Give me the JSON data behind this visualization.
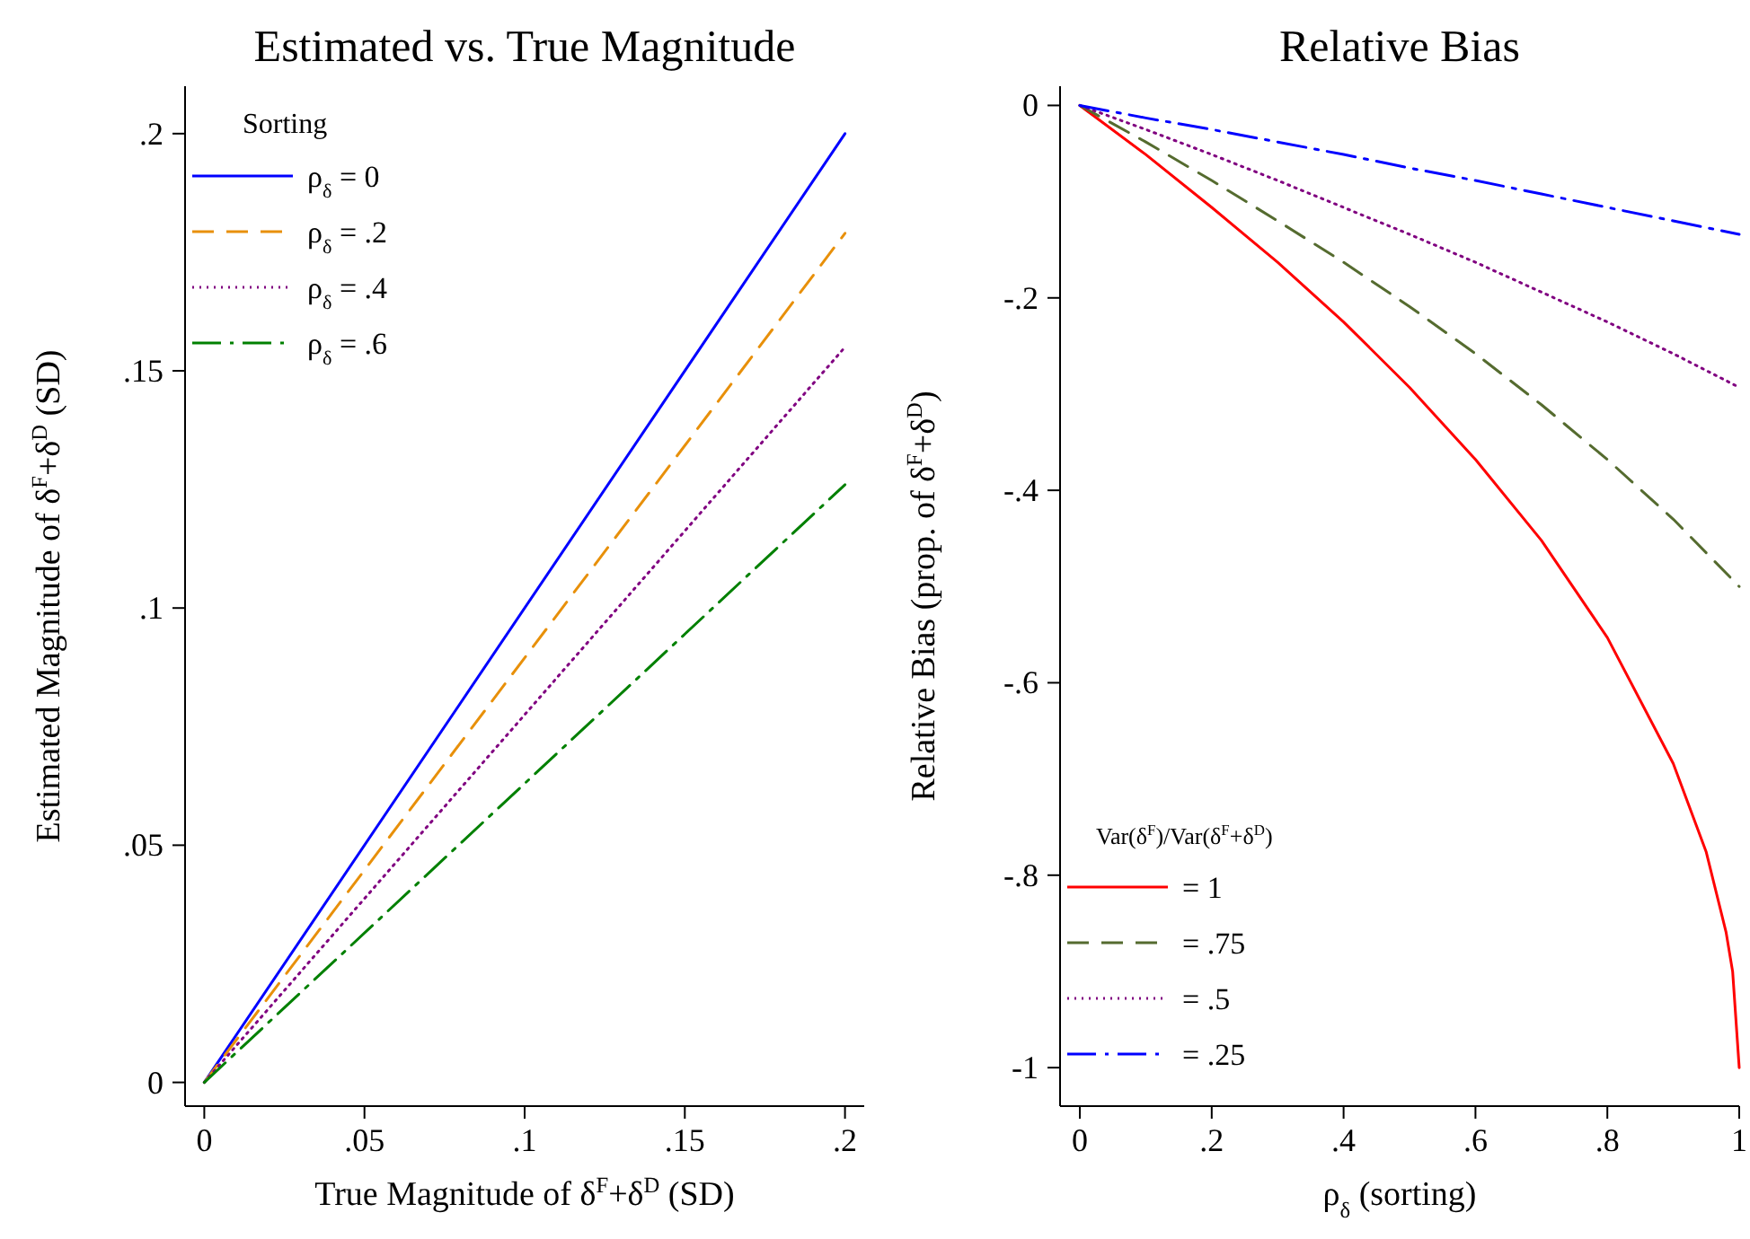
{
  "chart_data": [
    {
      "type": "line",
      "title": "Estimated vs. True Magnitude",
      "xlabel": "True Magnitude of δ$^{F}$+δ$^{D}$ (SD)",
      "ylabel": "Estimated Magnitude of δ$^{F}$+δ$^{D}$ (SD)",
      "legend_title": "Sorting",
      "legend": "top left",
      "x": [
        0,
        0.2
      ],
      "xlim": [
        -0.006,
        0.206
      ],
      "ylim": [
        -0.005,
        0.21
      ],
      "xticks": [
        {
          "value": 0,
          "label": "0"
        },
        {
          "value": 0.05,
          "label": ".05"
        },
        {
          "value": 0.1,
          "label": ".1"
        },
        {
          "value": 0.15,
          "label": ".15"
        },
        {
          "value": 0.2,
          "label": ".2"
        }
      ],
      "yticks": [
        {
          "value": 0,
          "label": "0"
        },
        {
          "value": 0.05,
          "label": ".05"
        },
        {
          "value": 0.1,
          "label": ".1"
        },
        {
          "value": 0.15,
          "label": ".15"
        },
        {
          "value": 0.2,
          "label": ".2"
        }
      ],
      "series": [
        {
          "name": "ρ$_{δ}$ = 0",
          "color": "#0000ff",
          "line_style": "solid",
          "values": [
            0,
            0.2
          ]
        },
        {
          "name": "ρ$_{δ}$ = .2",
          "color": "#e8900a",
          "line_style": "dashed",
          "values": [
            0,
            0.179
          ]
        },
        {
          "name": "ρ$_{δ}$ = .4",
          "color": "#800080",
          "line_style": "dotted",
          "values": [
            0,
            0.155
          ]
        },
        {
          "name": "ρ$_{δ}$ = .6",
          "color": "#008000",
          "line_style": "dashdot",
          "values": [
            0,
            0.126
          ]
        }
      ]
    },
    {
      "type": "line",
      "title": "Relative Bias",
      "xlabel": "ρ$_{δ}$ (sorting)",
      "ylabel": "Relative Bias (prop. of δ$^{F}$+δ$^{D}$)",
      "legend_title": "Var(δ$^{F}$)/Var(δ$^{F}$+δ$^{D}$)",
      "legend": "bottom left",
      "xlim": [
        -0.03,
        1.0
      ],
      "ylim": [
        -1.04,
        0.02
      ],
      "xticks": [
        {
          "value": 0,
          "label": "0"
        },
        {
          "value": 0.2,
          "label": ".2"
        },
        {
          "value": 0.4,
          "label": ".4"
        },
        {
          "value": 0.6,
          "label": ".6"
        },
        {
          "value": 0.8,
          "label": ".8"
        },
        {
          "value": 1,
          "label": "1"
        }
      ],
      "yticks": [
        {
          "value": 0,
          "label": "0"
        },
        {
          "value": -0.2,
          "label": "-.2"
        },
        {
          "value": -0.4,
          "label": "-.4"
        },
        {
          "value": -0.6,
          "label": "-.6"
        },
        {
          "value": -0.8,
          "label": "-.8"
        },
        {
          "value": -1,
          "label": "-1"
        }
      ],
      "series": [
        {
          "name": "= 1",
          "color": "#ff0000",
          "line_style": "solid",
          "x": [
            0,
            0.1,
            0.2,
            0.3,
            0.4,
            0.5,
            0.6,
            0.7,
            0.8,
            0.9,
            0.95,
            0.98,
            0.99,
            1
          ],
          "values": [
            0,
            -0.051,
            -0.106,
            -0.163,
            -0.225,
            -0.293,
            -0.368,
            -0.452,
            -0.553,
            -0.684,
            -0.776,
            -0.859,
            -0.9,
            -1
          ]
        },
        {
          "name": "= .75",
          "color": "#556b2f",
          "line_style": "dashed",
          "x": [
            0,
            0.1,
            0.2,
            0.3,
            0.4,
            0.5,
            0.6,
            0.7,
            0.8,
            0.9,
            1
          ],
          "values": [
            0,
            -0.038,
            -0.078,
            -0.12,
            -0.163,
            -0.209,
            -0.258,
            -0.311,
            -0.368,
            -0.43,
            -0.5
          ]
        },
        {
          "name": "= .5",
          "color": "#800080",
          "line_style": "dotted",
          "x": [
            0,
            0.1,
            0.2,
            0.3,
            0.4,
            0.5,
            0.6,
            0.7,
            0.8,
            0.9,
            1
          ],
          "values": [
            0,
            -0.025,
            -0.051,
            -0.078,
            -0.106,
            -0.134,
            -0.163,
            -0.194,
            -0.225,
            -0.258,
            -0.293
          ]
        },
        {
          "name": "= .25",
          "color": "#0000ff",
          "line_style": "dashdot",
          "x": [
            0,
            0.1,
            0.2,
            0.3,
            0.4,
            0.5,
            0.6,
            0.7,
            0.8,
            0.9,
            1
          ],
          "values": [
            0,
            -0.013,
            -0.025,
            -0.038,
            -0.051,
            -0.065,
            -0.078,
            -0.092,
            -0.106,
            -0.12,
            -0.134
          ]
        }
      ]
    }
  ]
}
